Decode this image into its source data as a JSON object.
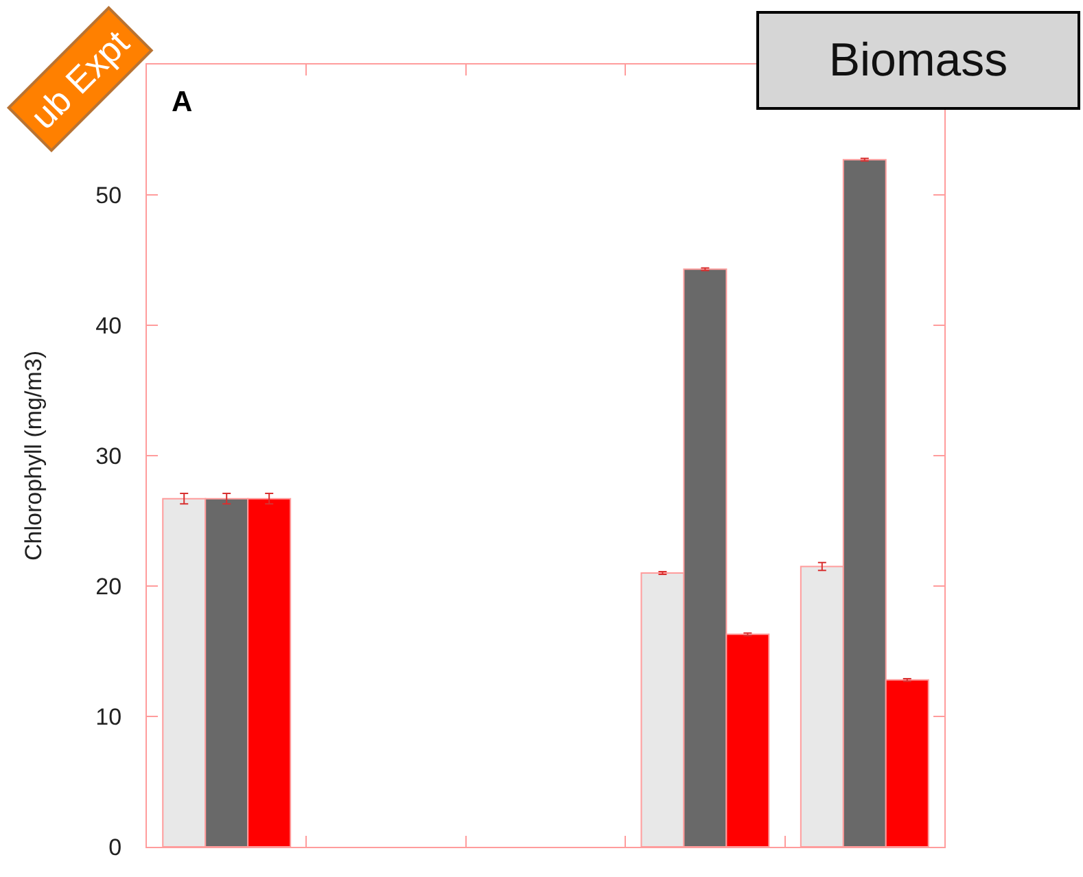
{
  "chart_data": {
    "type": "bar",
    "categories": [
      null,
      null,
      null,
      null,
      null
    ],
    "ylabel": "Chlorophyll (mg/m3)",
    "ylim": [
      0,
      60
    ],
    "yticks": [
      0,
      10,
      20,
      30,
      40,
      50
    ],
    "tick_labels": "y",
    "series": [
      {
        "color": "#e8e8e8",
        "values": [
          26.7,
          null,
          null,
          21.0,
          21.5
        ],
        "errors": [
          0.4,
          null,
          null,
          0.1,
          0.3
        ]
      },
      {
        "color": "#696969",
        "values": [
          26.7,
          null,
          null,
          44.3,
          52.7
        ],
        "errors": [
          0.4,
          null,
          null,
          0.1,
          0.1
        ]
      },
      {
        "color": "#ff0000",
        "values": [
          26.7,
          null,
          null,
          16.3,
          12.8
        ],
        "errors": [
          0.4,
          null,
          null,
          0.1,
          0.1
        ]
      }
    ],
    "annotations": [
      "A",
      "Biomass",
      "ub Expt"
    ]
  }
}
